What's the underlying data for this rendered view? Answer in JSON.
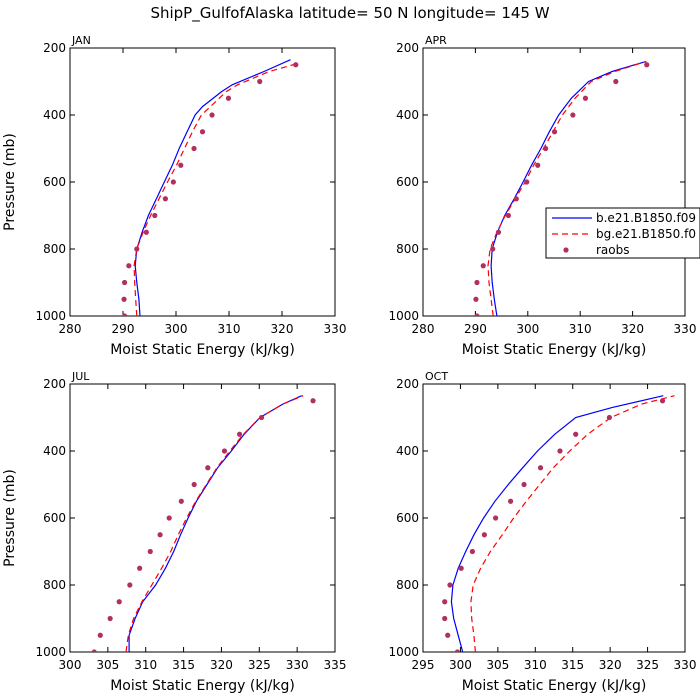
{
  "title": "ShipP_GulfofAlaska   latitude= 50 N longitude= 145 W",
  "legend": {
    "placement": "right of APR panel",
    "entries": [
      {
        "label": "b.e21.B1850.f09",
        "style": "solid",
        "color": "#0000ff"
      },
      {
        "label": "bg.e21.B1850.f0",
        "style": "dashed",
        "color": "#ff0000"
      },
      {
        "label": "raobs",
        "style": "dot",
        "color": "#b03060"
      }
    ]
  },
  "colors": {
    "model_b": "#0000ff",
    "model_bg": "#ff0000",
    "raobs": "#b03060"
  },
  "chart_data": [
    {
      "type": "line",
      "label": "JAN",
      "xlabel": "Moist Static Energy (kJ/kg)",
      "ylabel": "Pressure (mb)",
      "xlim": [
        280,
        330
      ],
      "ylim": [
        200,
        1000
      ],
      "y_inverted": true,
      "xticks": [
        280,
        290,
        300,
        310,
        320,
        330
      ],
      "yticks": [
        200,
        400,
        600,
        800,
        1000
      ],
      "series": [
        {
          "name": "b.e21.B1850.f09",
          "points": [
            [
              293.2,
              1000
            ],
            [
              293.0,
              950
            ],
            [
              292.6,
              900
            ],
            [
              292.3,
              850
            ],
            [
              292.6,
              800
            ],
            [
              293.6,
              750
            ],
            [
              294.8,
              700
            ],
            [
              296.3,
              650
            ],
            [
              297.8,
              600
            ],
            [
              299.3,
              550
            ],
            [
              300.6,
              500
            ],
            [
              302.1,
              450
            ],
            [
              303.6,
              400
            ],
            [
              305.0,
              375
            ],
            [
              308.6,
              330
            ],
            [
              310.6,
              310
            ],
            [
              316.6,
              270
            ],
            [
              321.6,
              235
            ]
          ]
        },
        {
          "name": "bg.e21.B1850.f0",
          "points": [
            [
              292.6,
              1000
            ],
            [
              292.4,
              950
            ],
            [
              292.2,
              900
            ],
            [
              292.1,
              850
            ],
            [
              292.6,
              800
            ],
            [
              293.8,
              750
            ],
            [
              295.2,
              700
            ],
            [
              296.8,
              650
            ],
            [
              298.4,
              600
            ],
            [
              300.1,
              550
            ],
            [
              301.6,
              500
            ],
            [
              303.1,
              450
            ],
            [
              304.8,
              400
            ],
            [
              306.5,
              375
            ],
            [
              309.5,
              330
            ],
            [
              311.6,
              310
            ],
            [
              317.6,
              270
            ],
            [
              323.2,
              245
            ]
          ]
        },
        {
          "name": "raobs",
          "points": [
            [
              290.3,
              1000
            ],
            [
              290.2,
              950
            ],
            [
              290.3,
              900
            ],
            [
              291.1,
              850
            ],
            [
              292.6,
              800
            ],
            [
              294.4,
              750
            ],
            [
              296.0,
              700
            ],
            [
              298.0,
              650
            ],
            [
              299.5,
              600
            ],
            [
              300.9,
              550
            ],
            [
              303.4,
              500
            ],
            [
              305.0,
              450
            ],
            [
              306.8,
              400
            ],
            [
              309.9,
              350
            ],
            [
              315.8,
              300
            ],
            [
              322.6,
              250
            ]
          ]
        }
      ]
    },
    {
      "type": "line",
      "label": "APR",
      "xlabel": "Moist Static Energy (kJ/kg)",
      "ylabel": "",
      "xlim": [
        280,
        330
      ],
      "ylim": [
        200,
        1000
      ],
      "y_inverted": true,
      "xticks": [
        280,
        290,
        300,
        310,
        320,
        330
      ],
      "yticks": [
        200,
        400,
        600,
        800,
        1000
      ],
      "series": [
        {
          "name": "b.e21.B1850.f09",
          "points": [
            [
              294.1,
              1000
            ],
            [
              293.6,
              950
            ],
            [
              293.2,
              900
            ],
            [
              293.0,
              850
            ],
            [
              293.2,
              800
            ],
            [
              294.2,
              750
            ],
            [
              295.6,
              700
            ],
            [
              297.4,
              650
            ],
            [
              299.1,
              600
            ],
            [
              300.7,
              550
            ],
            [
              302.5,
              500
            ],
            [
              304.1,
              450
            ],
            [
              305.9,
              400
            ],
            [
              308.3,
              350
            ],
            [
              311.6,
              300
            ],
            [
              316.1,
              270
            ],
            [
              322.6,
              240
            ]
          ]
        },
        {
          "name": "bg.e21.B1850.f0",
          "points": [
            [
              293.4,
              1000
            ],
            [
              293.0,
              950
            ],
            [
              292.6,
              900
            ],
            [
              292.4,
              850
            ],
            [
              292.8,
              800
            ],
            [
              294.1,
              750
            ],
            [
              295.7,
              700
            ],
            [
              297.6,
              650
            ],
            [
              299.5,
              600
            ],
            [
              301.1,
              550
            ],
            [
              303.0,
              500
            ],
            [
              304.8,
              450
            ],
            [
              306.6,
              400
            ],
            [
              309.0,
              350
            ],
            [
              312.1,
              300
            ],
            [
              316.6,
              270
            ],
            [
              322.6,
              240
            ]
          ]
        },
        {
          "name": "raobs",
          "points": [
            [
              290.3,
              1000
            ],
            [
              290.1,
              950
            ],
            [
              290.3,
              900
            ],
            [
              291.5,
              850
            ],
            [
              293.3,
              800
            ],
            [
              294.4,
              750
            ],
            [
              296.3,
              700
            ],
            [
              297.8,
              650
            ],
            [
              299.8,
              600
            ],
            [
              301.9,
              550
            ],
            [
              303.4,
              500
            ],
            [
              305.1,
              450
            ],
            [
              308.6,
              400
            ],
            [
              311.0,
              350
            ],
            [
              316.8,
              300
            ],
            [
              322.7,
              250
            ]
          ]
        }
      ]
    },
    {
      "type": "line",
      "label": "JUL",
      "xlabel": "Moist Static Energy (kJ/kg)",
      "ylabel": "Pressure (mb)",
      "xlim": [
        300,
        335
      ],
      "ylim": [
        200,
        1000
      ],
      "y_inverted": true,
      "xticks": [
        300,
        305,
        310,
        315,
        320,
        325,
        330,
        335
      ],
      "yticks": [
        200,
        400,
        600,
        800,
        1000
      ],
      "series": [
        {
          "name": "b.e21.B1850.f09",
          "points": [
            [
              307.8,
              1010
            ],
            [
              307.8,
              950
            ],
            [
              308.6,
              900
            ],
            [
              309.6,
              850
            ],
            [
              311.3,
              800
            ],
            [
              312.6,
              750
            ],
            [
              313.7,
              700
            ],
            [
              314.6,
              650
            ],
            [
              315.6,
              600
            ],
            [
              316.7,
              550
            ],
            [
              318.1,
              500
            ],
            [
              319.5,
              450
            ],
            [
              321.3,
              400
            ],
            [
              323.0,
              350
            ],
            [
              325.1,
              300
            ],
            [
              328.1,
              260
            ],
            [
              330.6,
              235
            ]
          ]
        },
        {
          "name": "bg.e21.B1850.f0",
          "points": [
            [
              307.4,
              1000
            ],
            [
              307.7,
              950
            ],
            [
              308.4,
              900
            ],
            [
              309.5,
              850
            ],
            [
              310.8,
              800
            ],
            [
              312.1,
              750
            ],
            [
              313.3,
              700
            ],
            [
              314.3,
              650
            ],
            [
              315.4,
              600
            ],
            [
              316.6,
              550
            ],
            [
              318.0,
              500
            ],
            [
              319.4,
              450
            ],
            [
              321.1,
              400
            ],
            [
              322.9,
              350
            ],
            [
              325.1,
              300
            ],
            [
              328.1,
              260
            ],
            [
              330.8,
              235
            ]
          ]
        },
        {
          "name": "raobs",
          "points": [
            [
              303.2,
              1000
            ],
            [
              304.0,
              950
            ],
            [
              305.3,
              900
            ],
            [
              306.5,
              850
            ],
            [
              307.9,
              800
            ],
            [
              309.2,
              750
            ],
            [
              310.6,
              700
            ],
            [
              311.9,
              650
            ],
            [
              313.1,
              600
            ],
            [
              314.7,
              550
            ],
            [
              316.4,
              500
            ],
            [
              318.2,
              450
            ],
            [
              320.4,
              400
            ],
            [
              322.4,
              350
            ],
            [
              325.3,
              300
            ],
            [
              332.1,
              250
            ]
          ]
        }
      ]
    },
    {
      "type": "line",
      "label": "OCT",
      "xlabel": "Moist Static Energy (kJ/kg)",
      "ylabel": "",
      "xlim": [
        295,
        330
      ],
      "ylim": [
        200,
        1000
      ],
      "y_inverted": true,
      "xticks": [
        295,
        300,
        305,
        310,
        315,
        320,
        325,
        330
      ],
      "yticks": [
        200,
        400,
        600,
        800,
        1000
      ],
      "series": [
        {
          "name": "b.e21.B1850.f09",
          "points": [
            [
              300.3,
              1000
            ],
            [
              299.7,
              950
            ],
            [
              299.1,
              900
            ],
            [
              298.8,
              850
            ],
            [
              299.0,
              800
            ],
            [
              299.7,
              750
            ],
            [
              300.7,
              700
            ],
            [
              301.8,
              650
            ],
            [
              303.1,
              600
            ],
            [
              304.6,
              550
            ],
            [
              306.4,
              500
            ],
            [
              308.3,
              450
            ],
            [
              310.3,
              400
            ],
            [
              312.6,
              350
            ],
            [
              315.4,
              300
            ],
            [
              320.3,
              270
            ],
            [
              327.1,
              235
            ]
          ]
        },
        {
          "name": "bg.e21.B1850.f0",
          "points": [
            [
              302.0,
              1000
            ],
            [
              301.8,
              950
            ],
            [
              301.5,
              900
            ],
            [
              301.4,
              850
            ],
            [
              301.7,
              800
            ],
            [
              302.7,
              750
            ],
            [
              304.0,
              700
            ],
            [
              305.6,
              650
            ],
            [
              307.1,
              600
            ],
            [
              308.8,
              550
            ],
            [
              310.6,
              500
            ],
            [
              312.4,
              450
            ],
            [
              314.6,
              400
            ],
            [
              317.0,
              350
            ],
            [
              320.1,
              300
            ],
            [
              324.2,
              260
            ],
            [
              328.6,
              235
            ]
          ]
        },
        {
          "name": "raobs",
          "points": [
            [
              299.6,
              1000
            ],
            [
              298.3,
              950
            ],
            [
              297.9,
              900
            ],
            [
              297.9,
              850
            ],
            [
              298.6,
              800
            ],
            [
              300.1,
              750
            ],
            [
              301.6,
              700
            ],
            [
              303.2,
              650
            ],
            [
              304.7,
              600
            ],
            [
              306.7,
              550
            ],
            [
              308.5,
              500
            ],
            [
              310.7,
              450
            ],
            [
              313.3,
              400
            ],
            [
              315.4,
              350
            ],
            [
              319.9,
              300
            ],
            [
              327.0,
              250
            ]
          ]
        }
      ]
    }
  ]
}
